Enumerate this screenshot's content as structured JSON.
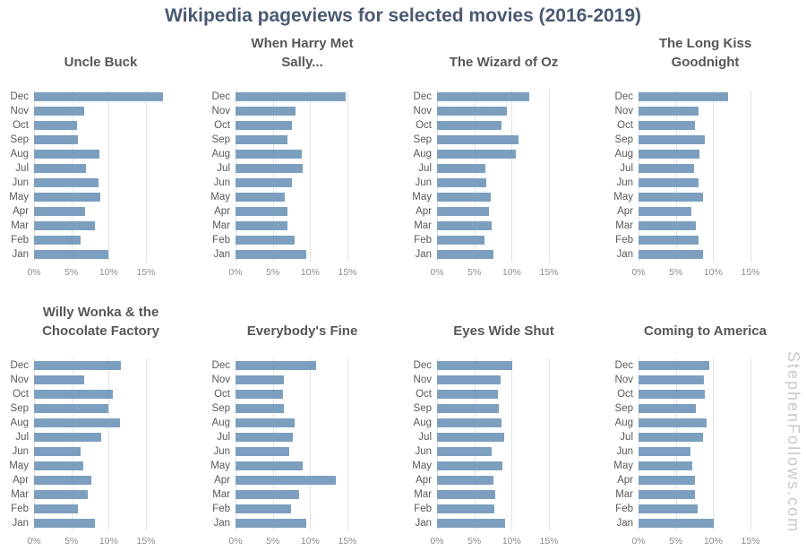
{
  "title": "Wikipedia pageviews for selected movies (2016-2019)",
  "watermark": "StephenFollows.com",
  "colors": {
    "bar": "#7c9fbf",
    "main_title": "#4b5a73",
    "subplot_title": "#575757",
    "y_axis_label": "#595959",
    "x_tick_label": "#8c8c8c",
    "gridline": "#e2e2e2",
    "watermark": "#c9c9c9"
  },
  "chart_data": {
    "type": "bar",
    "orientation": "horizontal",
    "grid": true,
    "categories": [
      "Dec",
      "Nov",
      "Oct",
      "Sep",
      "Aug",
      "Jul",
      "Jun",
      "May",
      "Apr",
      "Mar",
      "Feb",
      "Jan"
    ],
    "x_tick_labels": [
      "0%",
      "5%",
      "10%",
      "15%"
    ],
    "x_tick_values": [
      0,
      5,
      10,
      15
    ],
    "xlim": [
      0,
      18
    ],
    "unit": "% of period pageviews",
    "series": [
      {
        "name": "Uncle Buck",
        "values": [
          17.3,
          6.7,
          5.8,
          5.9,
          8.7,
          7.0,
          8.6,
          8.9,
          6.8,
          8.2,
          6.2,
          10.0
        ]
      },
      {
        "name": "When Harry Met Sally...",
        "values": [
          14.7,
          8.0,
          7.5,
          7.0,
          8.9,
          9.0,
          7.5,
          6.6,
          6.9,
          6.9,
          7.9,
          9.5
        ]
      },
      {
        "name": "The Wizard of Oz",
        "values": [
          12.3,
          9.4,
          8.6,
          10.9,
          10.6,
          6.5,
          6.6,
          7.2,
          7.0,
          7.3,
          6.4,
          7.6
        ]
      },
      {
        "name": "The Long Kiss Goodnight",
        "values": [
          12.0,
          8.0,
          7.5,
          8.9,
          8.2,
          7.4,
          8.0,
          8.6,
          7.1,
          7.7,
          8.0,
          8.6
        ]
      },
      {
        "name": "Willy Wonka & the Chocolate Factory",
        "values": [
          11.6,
          6.7,
          10.5,
          10.0,
          11.5,
          9.0,
          6.2,
          6.6,
          7.7,
          7.2,
          5.9,
          8.2
        ]
      },
      {
        "name": "Everybody's Fine",
        "values": [
          10.8,
          6.5,
          6.4,
          6.5,
          7.9,
          7.7,
          7.2,
          9.0,
          13.4,
          8.5,
          7.4,
          9.5
        ]
      },
      {
        "name": "Eyes Wide Shut",
        "values": [
          10.1,
          8.5,
          8.1,
          8.3,
          8.6,
          9.0,
          7.3,
          8.7,
          7.5,
          7.8,
          7.7,
          9.1
        ]
      },
      {
        "name": "Coming to America",
        "values": [
          9.5,
          8.7,
          8.9,
          7.7,
          9.1,
          8.6,
          7.0,
          7.2,
          7.5,
          7.5,
          7.9,
          10.1
        ]
      }
    ]
  }
}
